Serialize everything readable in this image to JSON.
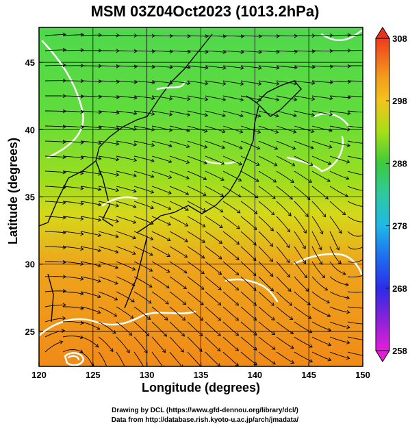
{
  "title": "MSM 03Z04Oct2023 (1013.2hPa)",
  "x_axis": {
    "label": "Longitude (degrees)",
    "ticks": [
      "120",
      "125",
      "130",
      "135",
      "140",
      "145",
      "150"
    ]
  },
  "y_axis": {
    "label": "Latitude  (degrees)",
    "ticks": [
      "25",
      "30",
      "35",
      "40",
      "45"
    ]
  },
  "colorbar": {
    "ticks": [
      "308",
      "298",
      "288",
      "278",
      "268",
      "258"
    ],
    "min": 258,
    "max": 308
  },
  "footer": {
    "line1": "Drawing by DCL (https://www.gfd-dennou.org/library/dcl/)",
    "line2": "Data from http://database.rish.kyoto-u.ac.jp/arch/jmadata/"
  },
  "chart_data": {
    "type": "heatmap",
    "title": "MSM 03Z04Oct2023 (1013.2hPa)",
    "xlabel": "Longitude (degrees)",
    "ylabel": "Latitude  (degrees)",
    "xlim": [
      120,
      150
    ],
    "ylim": [
      22.4,
      47.6
    ],
    "x_ticks": [
      120,
      125,
      130,
      135,
      140,
      145,
      150
    ],
    "y_ticks": [
      25,
      30,
      35,
      40,
      45
    ],
    "grid": true,
    "colorbar": {
      "min": 258,
      "max": 308,
      "ticks": [
        258,
        268,
        278,
        288,
        298,
        308
      ]
    },
    "overlays": [
      "streamlines",
      "white contours"
    ],
    "field_samples": [
      {
        "lon": 122,
        "lat": 46,
        "value": 286
      },
      {
        "lon": 130,
        "lat": 45,
        "value": 289
      },
      {
        "lon": 140,
        "lat": 45,
        "value": 290
      },
      {
        "lon": 148,
        "lat": 44,
        "value": 291
      },
      {
        "lon": 125,
        "lat": 40,
        "value": 290
      },
      {
        "lon": 135,
        "lat": 40,
        "value": 292
      },
      {
        "lon": 145,
        "lat": 40,
        "value": 292
      },
      {
        "lon": 128,
        "lat": 35,
        "value": 293
      },
      {
        "lon": 140,
        "lat": 33,
        "value": 296
      },
      {
        "lon": 148,
        "lat": 35,
        "value": 295
      },
      {
        "lon": 125,
        "lat": 30,
        "value": 298
      },
      {
        "lon": 135,
        "lat": 29,
        "value": 299
      },
      {
        "lon": 145,
        "lat": 30,
        "value": 300
      },
      {
        "lon": 125,
        "lat": 25,
        "value": 300
      },
      {
        "lon": 137,
        "lat": 25,
        "value": 301
      },
      {
        "lon": 148,
        "lat": 25,
        "value": 302
      }
    ]
  }
}
